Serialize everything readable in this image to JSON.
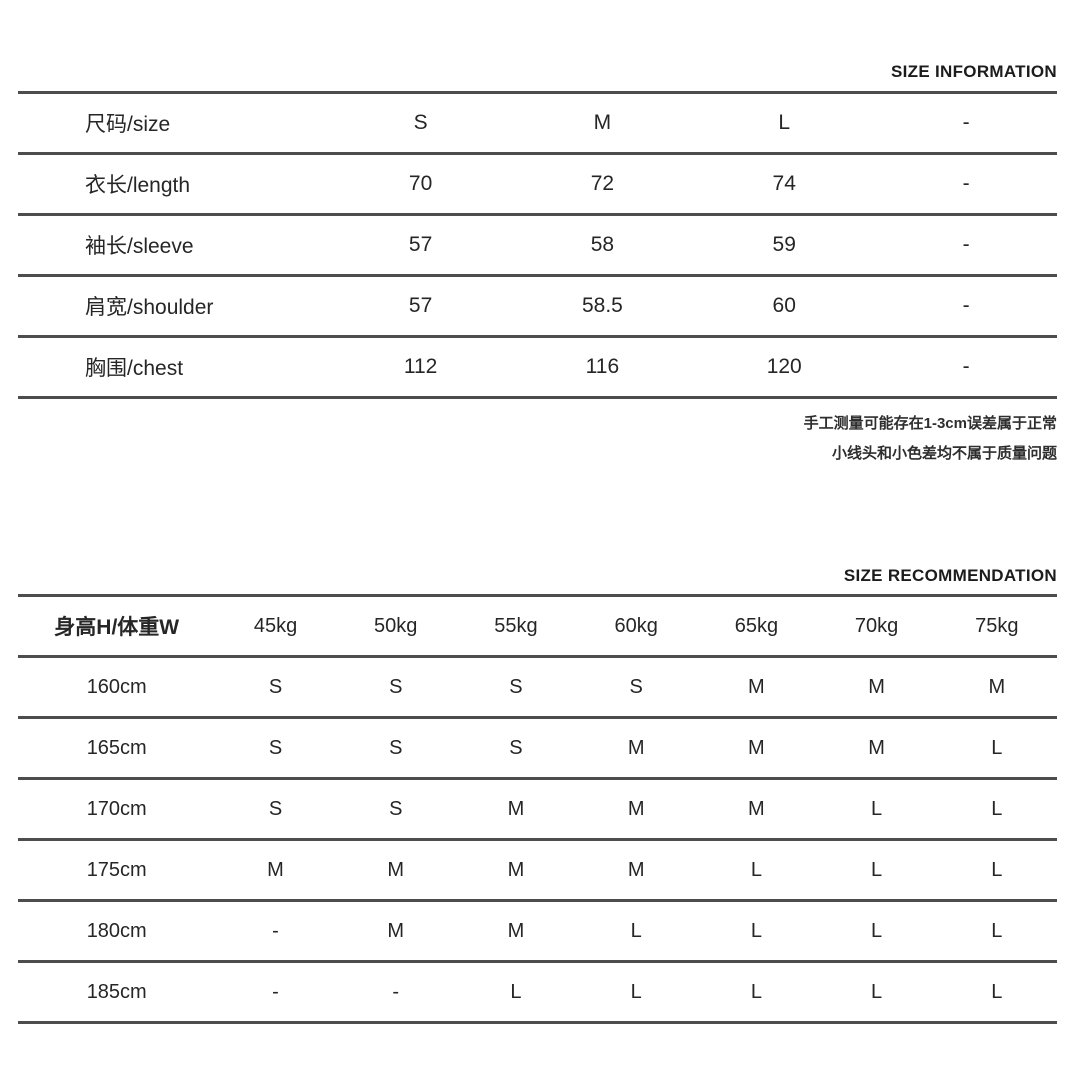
{
  "colors": {
    "background": "#ffffff",
    "text": "#2a2a2a",
    "divider_line": "#4d4d4d"
  },
  "size_information": {
    "title": "SIZE INFORMATION",
    "rows": [
      {
        "label": "尺码/size",
        "values": [
          "S",
          "M",
          "L",
          "-"
        ]
      },
      {
        "label": "衣长/length",
        "values": [
          "70",
          "72",
          "74",
          "-"
        ]
      },
      {
        "label": "袖长/sleeve",
        "values": [
          "57",
          "58",
          "59",
          "-"
        ]
      },
      {
        "label": "肩宽/shoulder",
        "values": [
          "57",
          "58.5",
          "60",
          "-"
        ]
      },
      {
        "label": "胸围/chest",
        "values": [
          "112",
          "116",
          "120",
          "-"
        ]
      }
    ],
    "notes": [
      "手工测量可能存在1-3cm误差属于正常",
      "小线头和小色差均不属于质量问题"
    ]
  },
  "size_recommendation": {
    "title": "SIZE RECOMMENDATION",
    "header": [
      "身高H/体重W",
      "45kg",
      "50kg",
      "55kg",
      "60kg",
      "65kg",
      "70kg",
      "75kg"
    ],
    "rows": [
      {
        "label": "160cm",
        "values": [
          "S",
          "S",
          "S",
          "S",
          "M",
          "M",
          "M"
        ]
      },
      {
        "label": "165cm",
        "values": [
          "S",
          "S",
          "S",
          "M",
          "M",
          "M",
          "L"
        ]
      },
      {
        "label": "170cm",
        "values": [
          "S",
          "S",
          "M",
          "M",
          "M",
          "L",
          "L"
        ]
      },
      {
        "label": "175cm",
        "values": [
          "M",
          "M",
          "M",
          "M",
          "L",
          "L",
          "L"
        ]
      },
      {
        "label": "180cm",
        "values": [
          "-",
          "M",
          "M",
          "L",
          "L",
          "L",
          "L"
        ]
      },
      {
        "label": "185cm",
        "values": [
          "-",
          "-",
          "L",
          "L",
          "L",
          "L",
          "L"
        ]
      }
    ]
  }
}
